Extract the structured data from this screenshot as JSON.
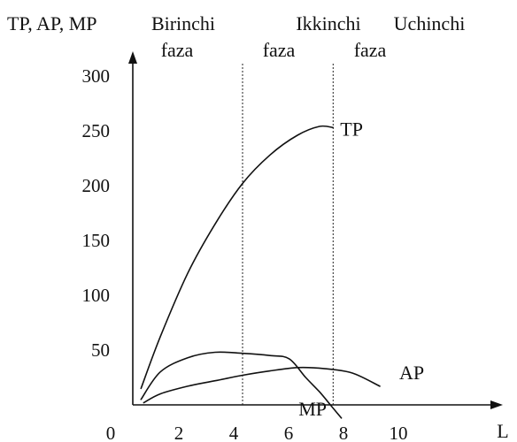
{
  "chart_data": {
    "type": "line",
    "ylabel": "TP, AP, MP",
    "xlabel": "L",
    "xlim": [
      0,
      10.5
    ],
    "ylim": [
      0,
      300
    ],
    "x_ticks": [
      "0",
      "2",
      "4",
      "6",
      "8",
      "10"
    ],
    "y_ticks": [
      "300",
      "250",
      "200",
      "150",
      "100",
      "50"
    ],
    "phases": [
      {
        "name": "Birinchi",
        "sub": "faza"
      },
      {
        "name": "Ikkinchi",
        "sub": "faza"
      },
      {
        "name": "Uchinchi",
        "sub": "faza"
      }
    ],
    "phase_boundaries": [
      4,
      7.3
    ],
    "series": [
      {
        "name": "TP",
        "points": [
          [
            0.3,
            15
          ],
          [
            1,
            62
          ],
          [
            2,
            120
          ],
          [
            3,
            165
          ],
          [
            4,
            202
          ],
          [
            5,
            228
          ],
          [
            6,
            246
          ],
          [
            6.8,
            254
          ],
          [
            7.3,
            253
          ]
        ]
      },
      {
        "name": "MP",
        "points": [
          [
            0.3,
            5
          ],
          [
            1,
            30
          ],
          [
            2,
            43
          ],
          [
            3,
            48
          ],
          [
            4,
            47
          ],
          [
            5,
            45
          ],
          [
            5.7,
            42
          ],
          [
            6.3,
            25
          ],
          [
            6.8,
            12
          ],
          [
            7.2,
            0
          ],
          [
            7.6,
            -12
          ]
        ]
      },
      {
        "name": "AP",
        "points": [
          [
            0.4,
            2
          ],
          [
            1,
            10
          ],
          [
            2,
            17
          ],
          [
            3,
            22
          ],
          [
            4,
            27
          ],
          [
            5,
            31
          ],
          [
            6,
            34
          ],
          [
            7,
            33
          ],
          [
            8,
            29
          ],
          [
            9,
            17
          ]
        ]
      }
    ]
  }
}
